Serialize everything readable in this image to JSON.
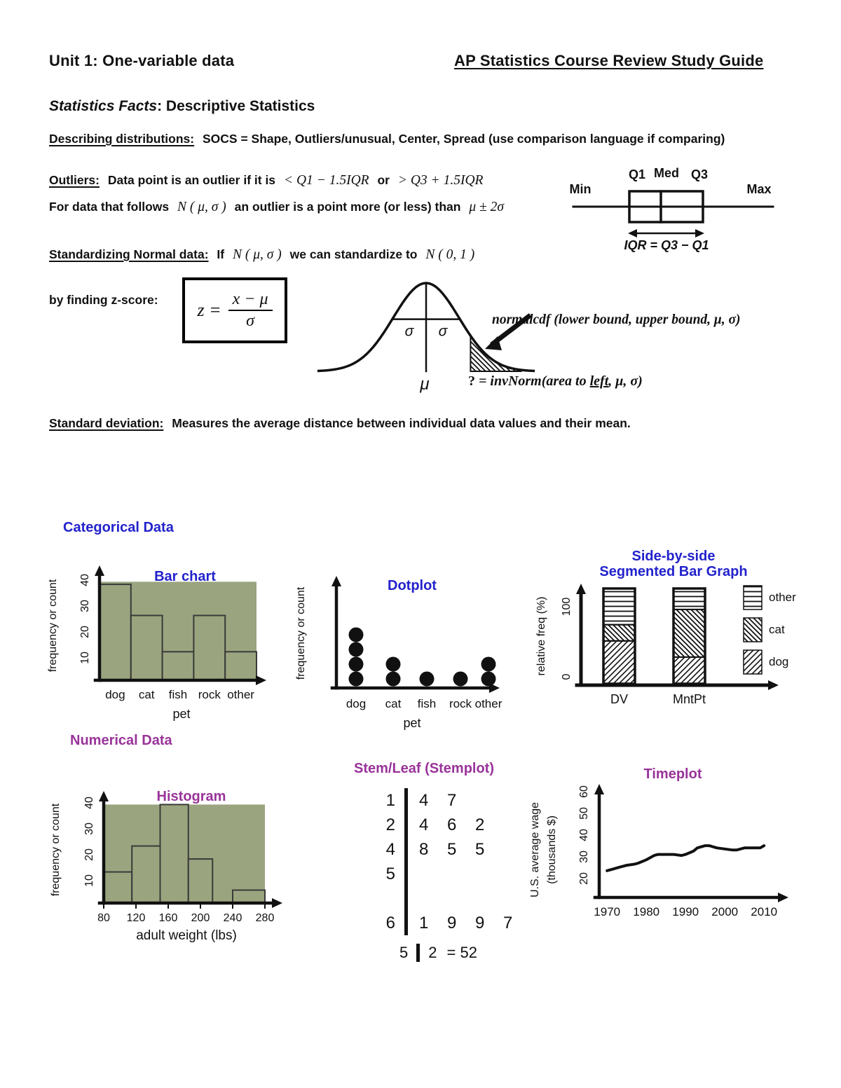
{
  "header": {
    "unit_title": "Unit 1:  One-variable data",
    "guide_title": "AP Statistics Course Review Study Guide"
  },
  "facts": {
    "italic_part": "Statistics Facts",
    "rest": ":  Descriptive Statistics"
  },
  "describing": {
    "label": "Describing distributions:",
    "text": "SOCS = Shape, Outliers/unusual, Center, Spread  (use comparison language if comparing)"
  },
  "outliers": {
    "label": "Outliers:",
    "pre": "Data point is an outlier if it is",
    "math1": "< Q1 − 1.5IQR",
    "mid": "or",
    "math2": "> Q3 + 1.5IQR",
    "line2_pre": "For data that follows",
    "line2_math1": "N ( μ, σ )",
    "line2_mid": "an outlier is a point more (or less) than",
    "line2_math2": "μ ± 2σ"
  },
  "standardizing": {
    "label": "Standardizing Normal data:",
    "pre": "If",
    "math1": "N ( μ, σ )",
    "mid": "we can standardize to",
    "math2": "N ( 0, 1 )"
  },
  "zscore": {
    "caption": "by finding z-score:",
    "lhs": "z =",
    "numerator": "x − μ",
    "denominator": "σ"
  },
  "stddev": {
    "label": "Standard deviation:",
    "text": "Measures the average distance between individual data values and their mean."
  },
  "sections": {
    "categorical": "Categorical Data",
    "numerical": "Numerical Data"
  },
  "colors": {
    "blue": "#2222cc",
    "purple": "#993399",
    "olive": "#9aa47e",
    "ink": "#111111"
  },
  "diagrams": {
    "boxplot": {
      "min": "Min",
      "q1": "Q1",
      "med": "Med",
      "q3": "Q3",
      "max": "Max",
      "iqr": "IQR = Q3 − Q1"
    },
    "normal_curve": {
      "sigma_left": "σ",
      "sigma_right": "σ",
      "mu": "μ",
      "normalcdf": "normalcdf (lower bound, upper bound, μ, σ)",
      "invnorm_q": "?",
      "invnorm_pre": " = invNorm(area to ",
      "invnorm_underlined": "left",
      "invnorm_post": ", μ, σ)"
    }
  },
  "chart_data": {
    "bar_chart": {
      "type": "bar",
      "title": "Bar chart",
      "ylabel": "frequency or count",
      "xlabel": "pet",
      "categories": [
        "dog",
        "cat",
        "fish",
        "rock",
        "other"
      ],
      "values": [
        37,
        25,
        11,
        25,
        11
      ],
      "yticks": [
        10,
        20,
        30,
        40
      ],
      "ylim": [
        0,
        40
      ],
      "plot_bg_level": 38
    },
    "dotplot": {
      "type": "dotplot",
      "title": "Dotplot",
      "ylabel": "frequency or count",
      "xlabel": "pet",
      "categories": [
        "dog",
        "cat",
        "fish",
        "rock",
        "other"
      ],
      "counts": [
        4,
        2,
        1,
        1,
        2
      ]
    },
    "segmented_bar": {
      "type": "stacked_bar",
      "title_line1": "Side-by-side",
      "title_line2": "Segmented Bar Graph",
      "ylabel": "relative freq (%)",
      "yticks": [
        "0",
        "100"
      ],
      "categories": [
        "DV",
        "MntPt"
      ],
      "series": [
        {
          "name": "dog",
          "pattern": "diag-up",
          "values": [
            45,
            28
          ]
        },
        {
          "name": "cat",
          "pattern": "diag-down",
          "values": [
            17,
            50
          ]
        },
        {
          "name": "other",
          "pattern": "horiz",
          "values": [
            38,
            22
          ]
        }
      ],
      "legend": [
        "other",
        "cat",
        "dog"
      ]
    },
    "histogram": {
      "type": "histogram",
      "title": "Histogram",
      "ylabel": "frequency or count",
      "xlabel": "adult weight (lbs)",
      "bars": [
        {
          "x0": 80,
          "x1": 115,
          "h": 12
        },
        {
          "x0": 115,
          "x1": 150,
          "h": 22
        },
        {
          "x0": 150,
          "x1": 185,
          "h": 38
        },
        {
          "x0": 185,
          "x1": 215,
          "h": 17
        },
        {
          "x0": 240,
          "x1": 280,
          "h": 5
        }
      ],
      "xticks": [
        80,
        120,
        160,
        200,
        240,
        280
      ],
      "yticks": [
        10,
        20,
        30,
        40
      ],
      "ylim": [
        0,
        40
      ],
      "plot_bg_level": 38
    },
    "stemplot": {
      "type": "stemplot",
      "title": "Stem/Leaf (Stemplot)",
      "rows": [
        {
          "stem": "1",
          "leaves": "4 7"
        },
        {
          "stem": "2",
          "leaves": "4 6 2"
        },
        {
          "stem": "4",
          "leaves": "8 5 5"
        },
        {
          "stem": "5",
          "leaves": ""
        },
        {
          "stem": "6",
          "leaves": "1 9 9 7"
        }
      ],
      "key": {
        "stem": "5",
        "leaf": "2",
        "equals": "= 52"
      }
    },
    "timeplot": {
      "type": "line",
      "title": "Timeplot",
      "ylabel_line1": "U.S. average wage",
      "ylabel_line2": "(thousands $)",
      "yticks": [
        20,
        30,
        40,
        50,
        60
      ],
      "xticks": [
        1970,
        1980,
        1990,
        2000,
        2010
      ],
      "x": [
        1970,
        1971,
        1973,
        1975,
        1977,
        1978,
        1980,
        1982,
        1983,
        1985,
        1987,
        1989,
        1990,
        1992,
        1993,
        1995,
        1996,
        1998,
        2000,
        2002,
        2003,
        2005,
        2007,
        2009,
        2010
      ],
      "y": [
        22,
        22.5,
        23.5,
        24.5,
        25,
        25.5,
        27,
        29,
        29.5,
        29.5,
        29.5,
        29,
        29.5,
        31,
        32.5,
        33.5,
        33.5,
        32.5,
        32,
        31.5,
        31.5,
        32.5,
        32.5,
        32.5,
        33.5
      ]
    }
  }
}
